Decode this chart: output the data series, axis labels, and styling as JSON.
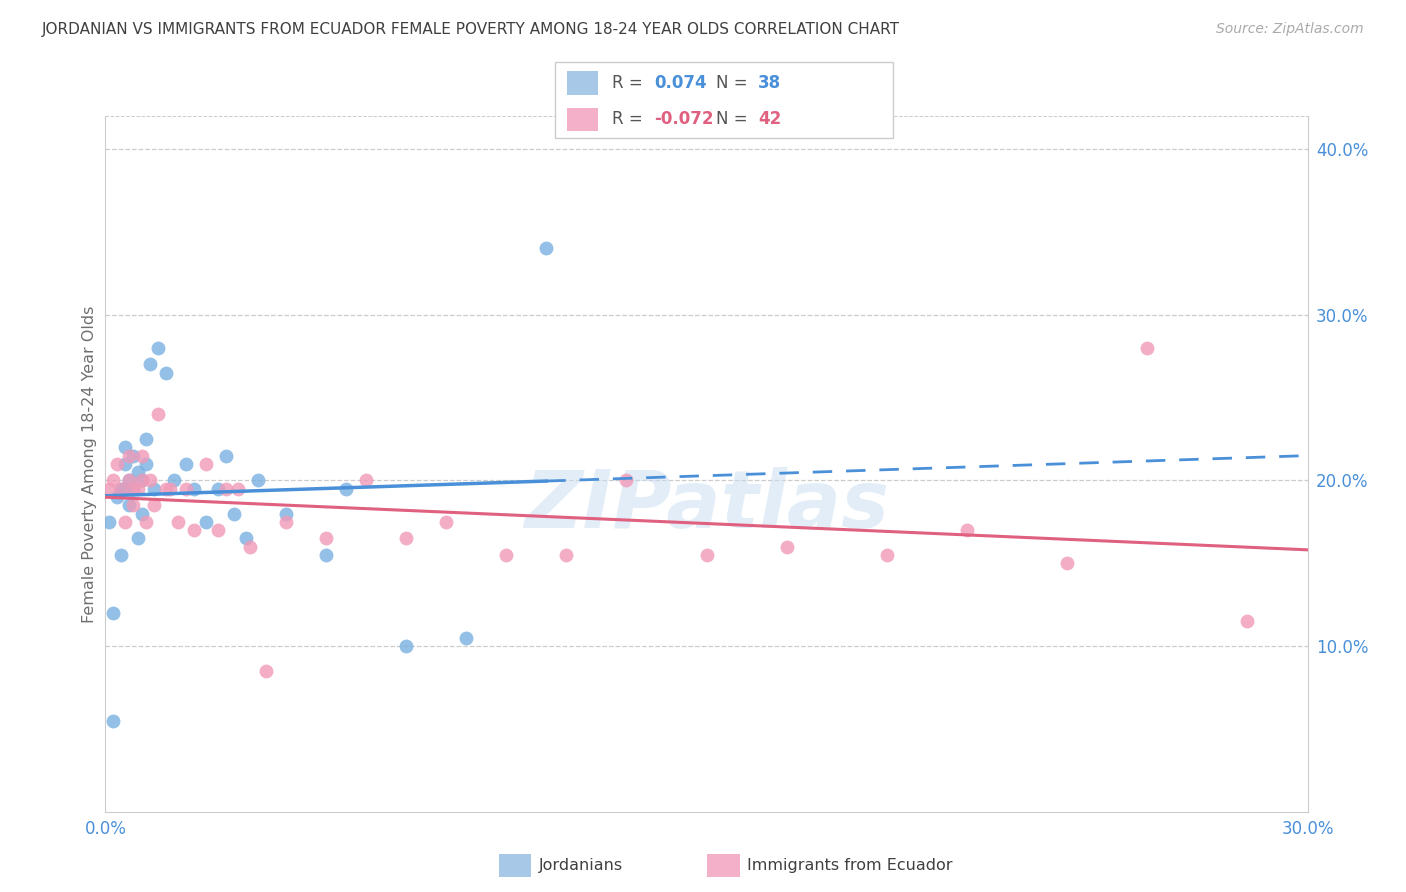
{
  "title": "JORDANIAN VS IMMIGRANTS FROM ECUADOR FEMALE POVERTY AMONG 18-24 YEAR OLDS CORRELATION CHART",
  "source": "Source: ZipAtlas.com",
  "ylabel": "Female Poverty Among 18-24 Year Olds",
  "xlim": [
    0.0,
    0.3
  ],
  "ylim": [
    0.0,
    0.42
  ],
  "blue_color": "#4a90d9",
  "pink_color": "#e06080",
  "blue_fill": "#a8c8e8",
  "pink_fill": "#f4b0c8",
  "blue_scatter": "#7ab0e0",
  "pink_scatter": "#f09ab8",
  "background_color": "#ffffff",
  "grid_color": "#cccccc",
  "watermark": "ZIPatlas",
  "R_jordanian": "0.074",
  "N_jordanian": "38",
  "R_ecuador": "-0.072",
  "N_ecuador": "42",
  "jordanians_x": [
    0.001,
    0.002,
    0.002,
    0.003,
    0.004,
    0.004,
    0.005,
    0.005,
    0.005,
    0.006,
    0.006,
    0.007,
    0.007,
    0.008,
    0.008,
    0.009,
    0.009,
    0.01,
    0.01,
    0.011,
    0.012,
    0.013,
    0.015,
    0.017,
    0.02,
    0.022,
    0.025,
    0.028,
    0.03,
    0.032,
    0.035,
    0.038,
    0.045,
    0.055,
    0.06,
    0.075,
    0.09,
    0.11
  ],
  "jordanians_y": [
    0.175,
    0.12,
    0.055,
    0.19,
    0.195,
    0.155,
    0.195,
    0.21,
    0.22,
    0.2,
    0.185,
    0.215,
    0.195,
    0.205,
    0.165,
    0.2,
    0.18,
    0.225,
    0.21,
    0.27,
    0.195,
    0.28,
    0.265,
    0.2,
    0.21,
    0.195,
    0.175,
    0.195,
    0.215,
    0.18,
    0.165,
    0.2,
    0.18,
    0.155,
    0.195,
    0.1,
    0.105,
    0.34
  ],
  "ecuador_x": [
    0.001,
    0.002,
    0.003,
    0.004,
    0.005,
    0.006,
    0.006,
    0.007,
    0.007,
    0.008,
    0.009,
    0.009,
    0.01,
    0.011,
    0.012,
    0.013,
    0.015,
    0.016,
    0.018,
    0.02,
    0.022,
    0.025,
    0.028,
    0.03,
    0.033,
    0.036,
    0.04,
    0.045,
    0.055,
    0.065,
    0.075,
    0.085,
    0.1,
    0.115,
    0.13,
    0.15,
    0.17,
    0.195,
    0.215,
    0.24,
    0.26,
    0.285
  ],
  "ecuador_y": [
    0.195,
    0.2,
    0.21,
    0.195,
    0.175,
    0.2,
    0.215,
    0.195,
    0.185,
    0.195,
    0.2,
    0.215,
    0.175,
    0.2,
    0.185,
    0.24,
    0.195,
    0.195,
    0.175,
    0.195,
    0.17,
    0.21,
    0.17,
    0.195,
    0.195,
    0.16,
    0.085,
    0.175,
    0.165,
    0.2,
    0.165,
    0.175,
    0.155,
    0.155,
    0.2,
    0.155,
    0.16,
    0.155,
    0.17,
    0.15,
    0.28,
    0.115
  ]
}
